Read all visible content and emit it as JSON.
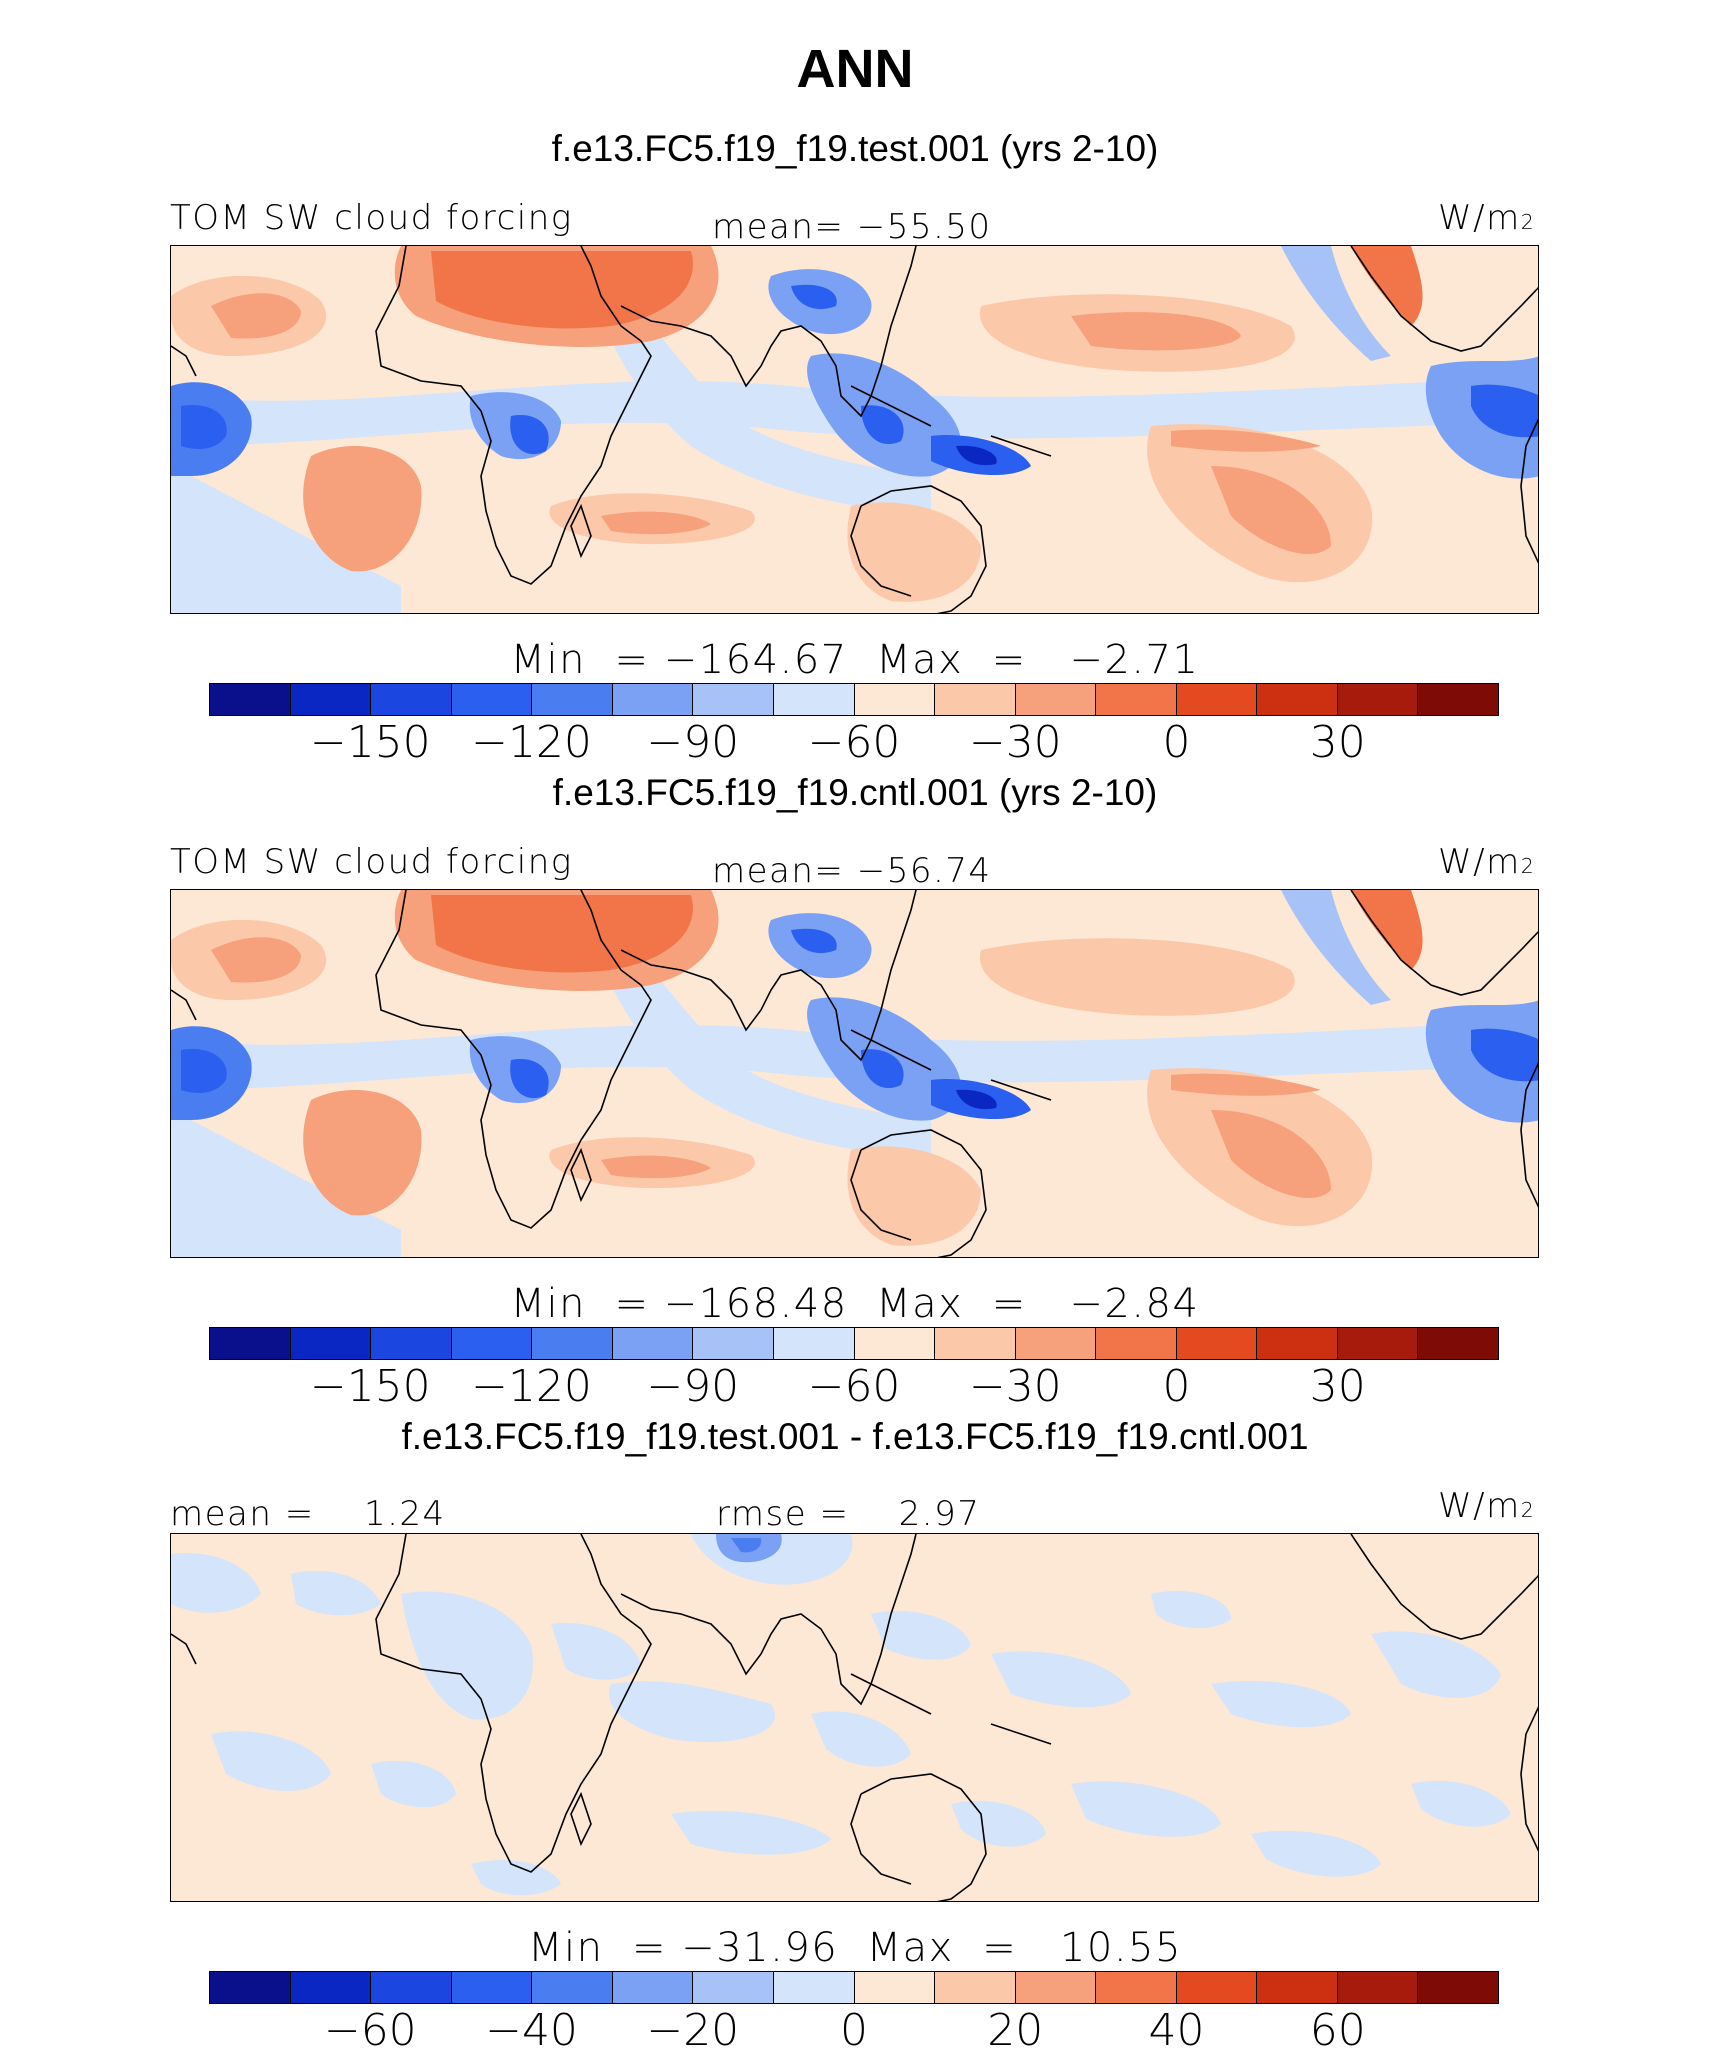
{
  "title": "ANN",
  "palette_abs": [
    "#0a0f8c",
    "#0a27c4",
    "#1b46e0",
    "#2b5ff0",
    "#4a7df0",
    "#7aa1f3",
    "#a6c2f7",
    "#d3e4fb",
    "#fde8d6",
    "#fbc8aa",
    "#f6a07c",
    "#f17548",
    "#e44a1f",
    "#cc3011",
    "#a61b0b",
    "#7e0b06"
  ],
  "panels": [
    {
      "case": "f.e13.FC5.f19_f19.test.001 (yrs 2-10)",
      "left_label": "TOM SW cloud forcing",
      "center_label": "mean= −55.50",
      "units_label": "W/m",
      "units_sup": "2",
      "minmax": "Min  = −164.67  Max  =   −2.71",
      "colorbar_ticks": [
        "−150",
        "−120",
        "−90",
        "−60",
        "−30",
        "0",
        "30"
      ]
    },
    {
      "case": "f.e13.FC5.f19_f19.cntl.001 (yrs 2-10)",
      "left_label": "TOM SW cloud forcing",
      "center_label": "mean= −56.74",
      "units_label": "W/m",
      "units_sup": "2",
      "minmax": "Min  = −168.48  Max  =   −2.84",
      "colorbar_ticks": [
        "−150",
        "−120",
        "−90",
        "−60",
        "−30",
        "0",
        "30"
      ]
    },
    {
      "case": "f.e13.FC5.f19_f19.test.001 - f.e13.FC5.f19_f19.cntl.001",
      "left_label": "mean =    1.24",
      "center_label": "rmse =    2.97",
      "units_label": "W/m",
      "units_sup": "2",
      "minmax": "Min  = −31.96  Max  =   10.55",
      "colorbar_ticks": [
        "−60",
        "−40",
        "−20",
        "0",
        "20",
        "40",
        "60"
      ]
    }
  ]
}
